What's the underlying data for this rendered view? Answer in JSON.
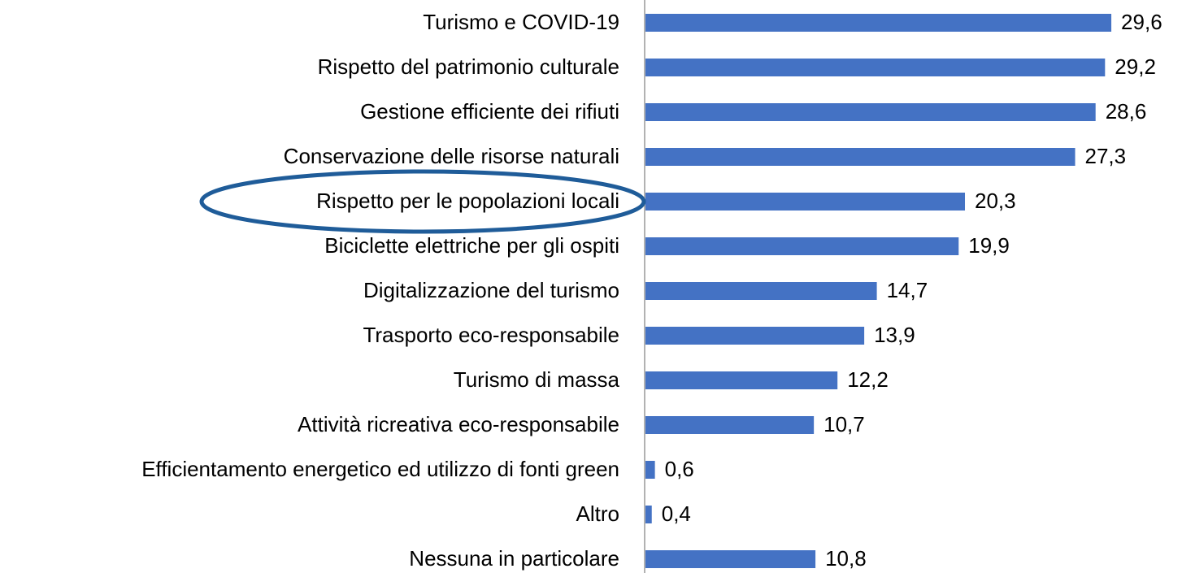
{
  "chart_data": {
    "type": "barh",
    "categories": [
      "Turismo e COVID-19",
      "Rispetto del patrimonio culturale",
      "Gestione efficiente dei rifiuti",
      "Conservazione delle risorse naturali",
      "Rispetto per le popolazioni locali",
      "Biciclette elettriche per gli ospiti",
      "Digitalizzazione del turismo",
      "Trasporto eco-responsabile",
      "Turismo di massa",
      "Attività ricreativa eco-responsabile",
      "Efficientamento energetico ed utilizzo di fonti green",
      "Altro",
      "Nessuna in particolare"
    ],
    "values": [
      29.6,
      29.2,
      28.6,
      27.3,
      20.3,
      19.9,
      14.7,
      13.9,
      12.2,
      10.7,
      0.6,
      0.4,
      10.8
    ],
    "value_labels": [
      "29,6",
      "29,2",
      "28,6",
      "27,3",
      "20,3",
      "19,9",
      "14,7",
      "13,9",
      "12,2",
      "10,7",
      "0,6",
      "0,4",
      "10,8"
    ],
    "color": "#4472c4"
  }
}
